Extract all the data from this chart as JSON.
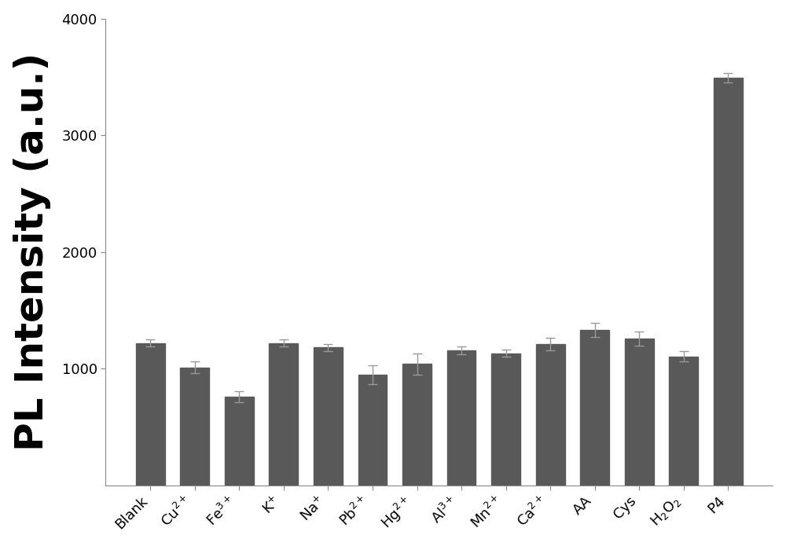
{
  "categories": [
    "Blank",
    "Cu$^{2+}$",
    "Fe$^{3+}$",
    "K$^{+}$",
    "Na$^{+}$",
    "Pb$^{2+}$",
    "Hg$^{2+}$",
    "Al$^{3+}$",
    "Mn$^{2+}$",
    "Ca$^{2+}$",
    "AA",
    "Cys",
    "H$_2$O$_2$",
    "P4"
  ],
  "values": [
    1220,
    1010,
    760,
    1220,
    1180,
    950,
    1040,
    1155,
    1130,
    1210,
    1330,
    1260,
    1105,
    3490
  ],
  "errors": [
    30,
    50,
    45,
    30,
    30,
    80,
    90,
    35,
    30,
    55,
    60,
    60,
    45,
    40
  ],
  "bar_color": "#595959",
  "ylabel": "PL Intensity (a.u.)",
  "ylim": [
    0,
    4000
  ],
  "yticks": [
    1000,
    2000,
    3000,
    4000
  ],
  "background_color": "#ffffff",
  "ylabel_fontsize": 36,
  "tick_fontsize": 13,
  "xlabel_rotation": 45,
  "bar_width": 0.65,
  "ecolor": "#999999",
  "capsize": 4
}
